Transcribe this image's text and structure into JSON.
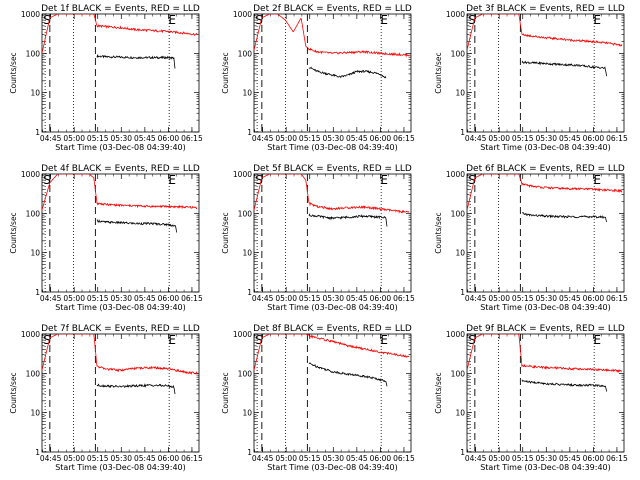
{
  "figure": {
    "common": {
      "ylabel": "Counts/sec",
      "xlabel": "Start Time (03-Dec-08 04:39:40)",
      "x_ticks": [
        {
          "t": 5.5,
          "label": "04:45"
        },
        {
          "t": 20.5,
          "label": "05:00"
        },
        {
          "t": 35.5,
          "label": "05:15"
        },
        {
          "t": 50.5,
          "label": "05:30"
        },
        {
          "t": 65.5,
          "label": "05:45"
        },
        {
          "t": 80.5,
          "label": "06:00"
        },
        {
          "t": 95.5,
          "label": "06:15"
        }
      ],
      "y_ticks": [
        {
          "v": 1,
          "label": "1"
        },
        {
          "v": 10,
          "label": "10"
        },
        {
          "v": 100,
          "label": "100"
        },
        {
          "v": 1000,
          "label": "1000"
        }
      ],
      "xlim_minutes": [
        0,
        100
      ],
      "ylim": [
        1,
        1000
      ],
      "yscale": "log",
      "colors": {
        "events": "#000000",
        "lld": "#ff0000"
      },
      "markers": {
        "S_label": "S",
        "E_label": "E"
      },
      "dashed_lines_minutes": [
        5,
        34
      ],
      "dotted_lines_minutes": [
        2,
        20,
        81
      ]
    }
  },
  "chart_data": [
    {
      "type": "line",
      "title": "Det 1f BLACK = Events, RED = LLD",
      "series": [
        {
          "color": "#000000",
          "x": [
            35,
            40,
            50,
            60,
            70,
            80,
            84,
            85
          ],
          "y": [
            85,
            82,
            80,
            78,
            78,
            78,
            76,
            30
          ]
        },
        {
          "color": "#ff0000",
          "x": [
            0,
            5,
            10,
            15,
            20,
            25,
            30,
            33,
            35,
            40,
            50,
            60,
            70,
            80,
            90,
            99
          ],
          "y": [
            100,
            800,
            1000,
            1000,
            1000,
            1000,
            1000,
            1000,
            500,
            480,
            450,
            400,
            380,
            360,
            330,
            300
          ]
        }
      ]
    },
    {
      "type": "line",
      "title": "Det 2f BLACK = Events, RED = LLD",
      "series": [
        {
          "color": "#000000",
          "x": [
            35,
            40,
            50,
            55,
            60,
            65,
            70,
            75,
            80,
            84
          ],
          "y": [
            45,
            35,
            28,
            25,
            28,
            34,
            35,
            33,
            30,
            24
          ]
        },
        {
          "color": "#ff0000",
          "x": [
            0,
            5,
            10,
            15,
            20,
            25,
            30,
            33,
            35,
            40,
            50,
            60,
            70,
            80,
            90,
            99
          ],
          "y": [
            120,
            800,
            1000,
            1000,
            700,
            350,
            800,
            150,
            130,
            110,
            100,
            105,
            110,
            100,
            95,
            90
          ]
        }
      ]
    },
    {
      "type": "line",
      "title": "Det 3f BLACK = Events, RED = LLD",
      "series": [
        {
          "color": "#000000",
          "x": [
            35,
            40,
            50,
            60,
            70,
            80,
            88,
            89
          ],
          "y": [
            60,
            58,
            55,
            52,
            50,
            45,
            42,
            25
          ]
        },
        {
          "color": "#ff0000",
          "x": [
            0,
            5,
            10,
            15,
            20,
            25,
            30,
            33,
            35,
            40,
            50,
            60,
            70,
            80,
            90,
            99
          ],
          "y": [
            120,
            800,
            1000,
            1000,
            1000,
            1000,
            1000,
            1000,
            300,
            280,
            250,
            230,
            210,
            200,
            180,
            160
          ]
        }
      ]
    },
    {
      "type": "line",
      "title": "Det 4f BLACK = Events, RED = LLD",
      "series": [
        {
          "color": "#000000",
          "x": [
            35,
            40,
            50,
            60,
            70,
            80,
            85,
            86
          ],
          "y": [
            65,
            60,
            58,
            55,
            55,
            52,
            48,
            28
          ]
        },
        {
          "color": "#ff0000",
          "x": [
            0,
            5,
            10,
            15,
            20,
            25,
            30,
            33,
            35,
            40,
            50,
            60,
            70,
            80,
            90,
            99
          ],
          "y": [
            120,
            600,
            1000,
            1000,
            1000,
            1000,
            1000,
            800,
            180,
            170,
            160,
            155,
            150,
            150,
            145,
            140
          ]
        }
      ]
    },
    {
      "type": "line",
      "title": "Det 5f BLACK = Events, RED = LLD",
      "series": [
        {
          "color": "#000000",
          "x": [
            35,
            40,
            50,
            60,
            70,
            80,
            84,
            85
          ],
          "y": [
            90,
            85,
            75,
            80,
            85,
            80,
            78,
            35
          ]
        },
        {
          "color": "#ff0000",
          "x": [
            0,
            5,
            10,
            15,
            20,
            25,
            30,
            33,
            35,
            40,
            50,
            60,
            70,
            80,
            90,
            99
          ],
          "y": [
            120,
            800,
            1000,
            1000,
            1000,
            1000,
            1000,
            700,
            180,
            150,
            130,
            140,
            145,
            130,
            115,
            105
          ]
        }
      ]
    },
    {
      "type": "line",
      "title": "Det 6f BLACK = Events, RED = LLD",
      "series": [
        {
          "color": "#000000",
          "x": [
            35,
            40,
            50,
            60,
            70,
            80,
            88,
            89
          ],
          "y": [
            100,
            90,
            85,
            82,
            82,
            82,
            80,
            60
          ]
        },
        {
          "color": "#ff0000",
          "x": [
            0,
            5,
            10,
            15,
            20,
            25,
            30,
            33,
            35,
            40,
            50,
            60,
            70,
            80,
            90,
            99
          ],
          "y": [
            120,
            800,
            1000,
            1000,
            1000,
            1000,
            1000,
            1000,
            550,
            500,
            450,
            430,
            420,
            410,
            390,
            370
          ]
        }
      ]
    },
    {
      "type": "line",
      "title": "Det 7f BLACK = Events, RED = LLD",
      "series": [
        {
          "color": "#000000",
          "x": [
            35,
            40,
            50,
            60,
            70,
            80,
            84,
            85
          ],
          "y": [
            50,
            48,
            46,
            48,
            50,
            48,
            45,
            25
          ]
        },
        {
          "color": "#ff0000",
          "x": [
            0,
            5,
            10,
            15,
            20,
            25,
            30,
            33,
            35,
            40,
            50,
            60,
            70,
            80,
            90,
            99
          ],
          "y": [
            120,
            800,
            1000,
            1000,
            1000,
            1000,
            1000,
            1000,
            150,
            130,
            120,
            135,
            140,
            130,
            110,
            100
          ]
        }
      ]
    },
    {
      "type": "line",
      "title": "Det 8f BLACK = Events, RED = LLD",
      "series": [
        {
          "color": "#000000",
          "x": [
            35,
            40,
            50,
            60,
            70,
            80,
            84,
            85
          ],
          "y": [
            180,
            150,
            110,
            95,
            85,
            70,
            62,
            45
          ]
        },
        {
          "color": "#ff0000",
          "x": [
            0,
            5,
            10,
            15,
            20,
            25,
            30,
            33,
            35,
            40,
            50,
            60,
            70,
            80,
            90,
            99
          ],
          "y": [
            120,
            800,
            1000,
            1000,
            1000,
            1000,
            1000,
            1000,
            900,
            800,
            650,
            500,
            420,
            350,
            300,
            260
          ]
        }
      ]
    },
    {
      "type": "line",
      "title": "Det 9f BLACK = Events, RED = LLD",
      "series": [
        {
          "color": "#000000",
          "x": [
            35,
            40,
            50,
            60,
            70,
            80,
            88,
            89
          ],
          "y": [
            65,
            60,
            55,
            52,
            50,
            50,
            48,
            35
          ]
        },
        {
          "color": "#ff0000",
          "x": [
            0,
            5,
            10,
            15,
            20,
            25,
            30,
            33,
            35,
            40,
            50,
            60,
            70,
            80,
            90,
            99
          ],
          "y": [
            120,
            800,
            1000,
            1000,
            1000,
            1000,
            1000,
            1000,
            160,
            150,
            140,
            135,
            130,
            125,
            120,
            115
          ]
        }
      ]
    }
  ]
}
